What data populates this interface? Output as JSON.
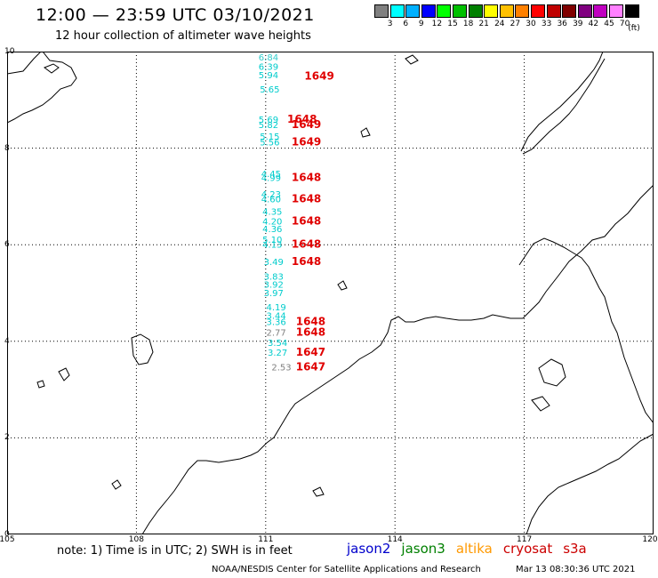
{
  "header": {
    "title": "12:00 — 23:59 UTC 03/10/2021",
    "subtitle": "12 hour collection of altimeter wave heights"
  },
  "colorbar": {
    "colors": [
      "#808080",
      "#00ffff",
      "#00b0ff",
      "#0000ff",
      "#00ff00",
      "#00c000",
      "#008000",
      "#ffff00",
      "#ffc000",
      "#ff8000",
      "#ff0000",
      "#c00000",
      "#800000",
      "#800080",
      "#c000c0",
      "#ff80ff",
      "#000000"
    ],
    "ticks": [
      "3",
      "6",
      "9",
      "12",
      "15",
      "18",
      "21",
      "24",
      "27",
      "30",
      "33",
      "36",
      "39",
      "42",
      "45",
      "70"
    ],
    "unit": "(ft)"
  },
  "map": {
    "lat_labels": [
      "10",
      "8",
      "6",
      "4",
      "2",
      "0"
    ],
    "lon_labels": [
      "105",
      "108",
      "111",
      "114",
      "117",
      "120"
    ],
    "lon_range": [
      105,
      120
    ],
    "lat_range": [
      0,
      10
    ],
    "wave_labels": [
      {
        "text": "6.84",
        "lon": 111.0,
        "lat": 9.82,
        "color": "#33cccc"
      },
      {
        "text": "6.39",
        "lon": 111.0,
        "lat": 9.62,
        "color": "#00cccc"
      },
      {
        "text": "5.94",
        "lon": 111.0,
        "lat": 9.45,
        "color": "#00cccc"
      },
      {
        "text": "5.65",
        "lon": 111.03,
        "lat": 9.15,
        "color": "#00cccc"
      },
      {
        "text": "5.69",
        "lon": 111.0,
        "lat": 8.53,
        "color": "#00cccc"
      },
      {
        "text": "5.82",
        "lon": 111.0,
        "lat": 8.42,
        "color": "#00cccc"
      },
      {
        "text": "5.15",
        "lon": 111.03,
        "lat": 8.18,
        "color": "#00cccc"
      },
      {
        "text": "5.56",
        "lon": 111.03,
        "lat": 8.06,
        "color": "#00cccc"
      },
      {
        "text": "4.45",
        "lon": 111.06,
        "lat": 7.4,
        "color": "#00cccc"
      },
      {
        "text": "4.99",
        "lon": 111.06,
        "lat": 7.32,
        "color": "#00cccc"
      },
      {
        "text": "4.23",
        "lon": 111.06,
        "lat": 6.98,
        "color": "#00cccc"
      },
      {
        "text": "4.60",
        "lon": 111.06,
        "lat": 6.88,
        "color": "#00cccc"
      },
      {
        "text": "4.35",
        "lon": 111.09,
        "lat": 6.62,
        "color": "#00cccc"
      },
      {
        "text": "4.20",
        "lon": 111.09,
        "lat": 6.42,
        "color": "#00cccc"
      },
      {
        "text": "4.36",
        "lon": 111.09,
        "lat": 6.26,
        "color": "#00cccc"
      },
      {
        "text": "5.10",
        "lon": 111.09,
        "lat": 6.04,
        "color": "#00cccc"
      },
      {
        "text": "4.13",
        "lon": 111.09,
        "lat": 5.94,
        "color": "#00cccc"
      },
      {
        "text": "3.49",
        "lon": 111.12,
        "lat": 5.58,
        "color": "#00cccc"
      },
      {
        "text": "3.83",
        "lon": 111.12,
        "lat": 5.28,
        "color": "#00cccc"
      },
      {
        "text": "3.92",
        "lon": 111.12,
        "lat": 5.11,
        "color": "#00cccc"
      },
      {
        "text": "3.97",
        "lon": 111.12,
        "lat": 4.94,
        "color": "#00cccc"
      },
      {
        "text": "4.19",
        "lon": 111.18,
        "lat": 4.64,
        "color": "#00cccc"
      },
      {
        "text": "3.44",
        "lon": 111.18,
        "lat": 4.47,
        "color": "#00cccc"
      },
      {
        "text": "3.36",
        "lon": 111.18,
        "lat": 4.34,
        "color": "#00cccc"
      },
      {
        "text": "2.77",
        "lon": 111.18,
        "lat": 4.12,
        "color": "#808080"
      },
      {
        "text": "3.54",
        "lon": 111.21,
        "lat": 3.9,
        "color": "#00cccc"
      },
      {
        "text": "3.27",
        "lon": 111.21,
        "lat": 3.7,
        "color": "#00cccc"
      },
      {
        "text": "2.53",
        "lon": 111.3,
        "lat": 3.4,
        "color": "#808080"
      }
    ],
    "time_labels": [
      {
        "text": "1649",
        "lon": 111.9,
        "lat": 9.42
      },
      {
        "text": "1648",
        "lon": 111.5,
        "lat": 8.53
      },
      {
        "text": "1649",
        "lon": 111.6,
        "lat": 8.42
      },
      {
        "text": "1649",
        "lon": 111.6,
        "lat": 8.06
      },
      {
        "text": "1648",
        "lon": 111.6,
        "lat": 7.32
      },
      {
        "text": "1648",
        "lon": 111.6,
        "lat": 6.88
      },
      {
        "text": "1648",
        "lon": 111.6,
        "lat": 6.42
      },
      {
        "text": "1648",
        "lon": 111.6,
        "lat": 5.94
      },
      {
        "text": "1648",
        "lon": 111.6,
        "lat": 5.58
      },
      {
        "text": "1648",
        "lon": 111.7,
        "lat": 4.34
      },
      {
        "text": "1648",
        "lon": 111.7,
        "lat": 4.12
      },
      {
        "text": "1647",
        "lon": 111.7,
        "lat": 3.7
      },
      {
        "text": "1647",
        "lon": 111.7,
        "lat": 3.4
      }
    ]
  },
  "footer": {
    "note": "note:  1) Time is in UTC;  2) SWH is in feet",
    "legend": [
      {
        "text": "jason2",
        "color": "#0000cc"
      },
      {
        "text": "jason3",
        "color": "#008000"
      },
      {
        "text": "altika",
        "color": "#ff9900"
      },
      {
        "text": "cryosat",
        "color": "#cc0000"
      },
      {
        "text": "s3a",
        "color": "#cc0000"
      }
    ],
    "credit": "NOAA/NESDIS Center for Satellite Applications and Research",
    "timestamp": "Mar 13 08:30:36 UTC 2021"
  }
}
